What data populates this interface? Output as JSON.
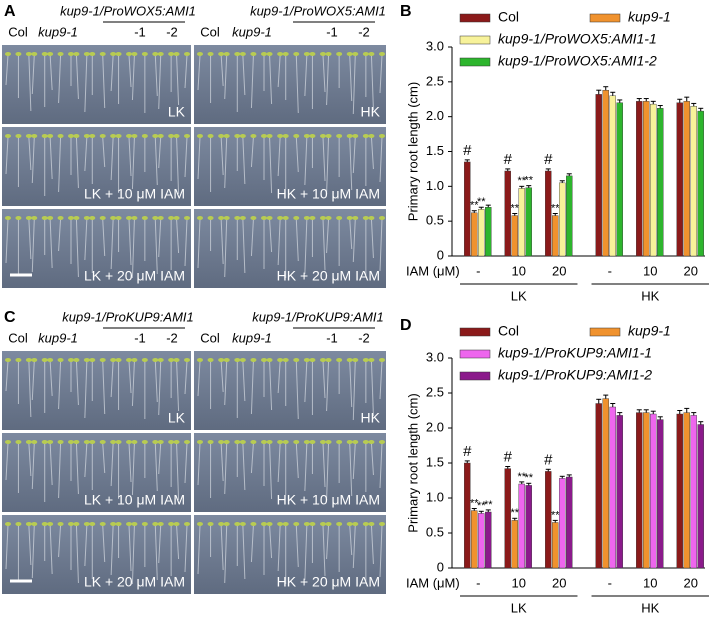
{
  "panels": [
    {
      "letter": "A",
      "genotype": "kup9-1/ProWOX5:AMI1",
      "columns": [
        "Col",
        "kup9-1",
        "-1",
        "-2"
      ],
      "images": [
        [
          "LK",
          "HK"
        ],
        [
          "LK + 10 μM IAM",
          "HK + 10 μM IAM"
        ],
        [
          "LK + 20 μM IAM",
          "HK + 20 μM IAM"
        ]
      ]
    },
    {
      "letter": "C",
      "genotype": "kup9-1/ProKUP9:AMI1",
      "columns": [
        "Col",
        "kup9-1",
        "-1",
        "-2"
      ],
      "images": [
        [
          "LK",
          "HK"
        ],
        [
          "LK + 10 μM IAM",
          "HK + 10 μM IAM"
        ],
        [
          "LK + 20 μM IAM",
          "HK + 20 μM IAM"
        ]
      ]
    }
  ],
  "chart_data": [
    {
      "type": "bar",
      "letter": "B",
      "ylabel": "Primary root length (cm)",
      "xlabel": "IAM (μM)",
      "categories": [
        "-",
        "10",
        "20",
        "-",
        "10",
        "20"
      ],
      "groups": [
        "LK",
        "HK"
      ],
      "ylim": [
        0,
        3
      ],
      "yticks": [
        0,
        0.5,
        {
          "value": 1,
          "label": "1.0"
        },
        1.5,
        {
          "value": 2,
          "label": "2.0"
        },
        2.5,
        {
          "value": 3,
          "label": "3.0"
        }
      ],
      "series": [
        {
          "name": "Col",
          "color": "#8b1a1a",
          "values": [
            1.35,
            1.22,
            1.22,
            2.32,
            2.22,
            2.2
          ],
          "errors": [
            0.03,
            0.03,
            0.03,
            0.06,
            0.04,
            0.05
          ],
          "markers": [
            "#",
            "#",
            "#",
            null,
            null,
            null
          ]
        },
        {
          "name": "kup9-1",
          "color": "#f0922e",
          "values": [
            0.62,
            0.58,
            0.58,
            2.38,
            2.22,
            2.22
          ],
          "errors": [
            0.03,
            0.03,
            0.03,
            0.05,
            0.04,
            0.06
          ],
          "markers": [
            "**",
            "**",
            "**",
            null,
            null,
            null
          ]
        },
        {
          "name": "kup9-1/ProWOX5:AMI1-1",
          "color": "#f7f29a",
          "values": [
            0.67,
            0.97,
            1.05,
            2.3,
            2.18,
            2.15
          ],
          "errors": [
            0.03,
            0.03,
            0.03,
            0.05,
            0.04,
            0.04
          ],
          "markers": [
            "**",
            "**",
            null,
            null,
            null,
            null
          ]
        },
        {
          "name": "kup9-1/ProWOX5:AMI1-2",
          "color": "#2db52d",
          "values": [
            0.7,
            0.98,
            1.15,
            2.2,
            2.12,
            2.08
          ],
          "errors": [
            0.03,
            0.03,
            0.03,
            0.04,
            0.04,
            0.04
          ],
          "markers": [
            null,
            "**",
            null,
            null,
            null,
            null
          ]
        }
      ]
    },
    {
      "type": "bar",
      "letter": "D",
      "ylabel": "Primary root length (cm)",
      "xlabel": "IAM (μM)",
      "categories": [
        "-",
        "10",
        "20",
        "-",
        "10",
        "20"
      ],
      "groups": [
        "LK",
        "HK"
      ],
      "ylim": [
        0,
        3
      ],
      "yticks": [
        0,
        0.5,
        {
          "value": 1,
          "label": "1.0"
        },
        1.5,
        {
          "value": 2,
          "label": "2.0"
        },
        2.5,
        {
          "value": 3,
          "label": "3.0"
        }
      ],
      "series": [
        {
          "name": "Col",
          "color": "#8b1a1a",
          "values": [
            1.5,
            1.42,
            1.38,
            2.35,
            2.22,
            2.2
          ],
          "errors": [
            0.03,
            0.03,
            0.03,
            0.06,
            0.04,
            0.05
          ],
          "markers": [
            "#",
            "#",
            "#",
            null,
            null,
            null
          ]
        },
        {
          "name": "kup9-1",
          "color": "#f0922e",
          "values": [
            0.82,
            0.68,
            0.65,
            2.42,
            2.22,
            2.22
          ],
          "errors": [
            0.03,
            0.03,
            0.03,
            0.05,
            0.04,
            0.06
          ],
          "markers": [
            "**",
            "**",
            "**",
            null,
            null,
            null
          ]
        },
        {
          "name": "kup9-1/ProKUP9:AMI1-1",
          "color": "#ee66ee",
          "values": [
            0.78,
            1.2,
            1.28,
            2.3,
            2.2,
            2.18
          ],
          "errors": [
            0.03,
            0.03,
            0.03,
            0.05,
            0.04,
            0.04
          ],
          "markers": [
            "**",
            "**",
            null,
            null,
            null,
            null
          ]
        },
        {
          "name": "kup9-1/ProKUP9:AMI1-2",
          "color": "#8b1a8b",
          "values": [
            0.8,
            1.18,
            1.3,
            2.18,
            2.12,
            2.05
          ],
          "errors": [
            0.03,
            0.03,
            0.03,
            0.04,
            0.04,
            0.04
          ],
          "markers": [
            "**",
            "**",
            null,
            null,
            null,
            null
          ]
        }
      ]
    }
  ]
}
